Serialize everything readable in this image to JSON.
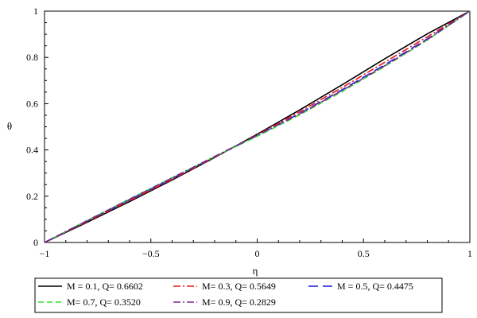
{
  "chart_data": {
    "type": "line",
    "xlabel": "η",
    "ylabel": "θ",
    "xlim": [
      -1,
      1
    ],
    "ylim": [
      0,
      1
    ],
    "x_ticks": [
      "−1",
      "−0.5",
      "0",
      "0.5",
      "1"
    ],
    "y_ticks": [
      "0",
      "0.2",
      "0.4",
      "0.6",
      "0.8",
      "1"
    ],
    "grid": false,
    "legend_position": "bottom",
    "x": [
      -1,
      -0.8,
      -0.6,
      -0.4,
      -0.2,
      0,
      0.2,
      0.4,
      0.6,
      0.8,
      1
    ],
    "series": [
      {
        "name": "M = 0.1, Q= 0.6602",
        "color": "#000000",
        "dash": "solid",
        "values": [
          0,
          0.087,
          0.177,
          0.27,
          0.367,
          0.468,
          0.573,
          0.682,
          0.794,
          0.902,
          1
        ]
      },
      {
        "name": "M= 0.3, Q= 0.5649",
        "color": "#e8141a",
        "dash": "dashdot",
        "values": [
          0,
          0.09,
          0.181,
          0.273,
          0.368,
          0.465,
          0.565,
          0.67,
          0.779,
          0.889,
          1
        ]
      },
      {
        "name": "M = 0.5, Q= 0.4475",
        "color": "#1a1ad6",
        "dash": "longdash",
        "values": [
          0,
          0.093,
          0.185,
          0.277,
          0.37,
          0.462,
          0.558,
          0.66,
          0.768,
          0.88,
          1
        ]
      },
      {
        "name": "M= 0.7, Q= 0.3520",
        "color": "#33dd33",
        "dash": "dash",
        "values": [
          0,
          0.095,
          0.188,
          0.28,
          0.371,
          0.459,
          0.552,
          0.653,
          0.761,
          0.875,
          1
        ]
      },
      {
        "name": "M= 0.9, Q= 0.2829",
        "color": "#7b2a8a",
        "dash": "dashdot",
        "values": [
          0,
          0.094,
          0.187,
          0.279,
          0.372,
          0.463,
          0.556,
          0.657,
          0.764,
          0.877,
          1
        ]
      }
    ]
  }
}
